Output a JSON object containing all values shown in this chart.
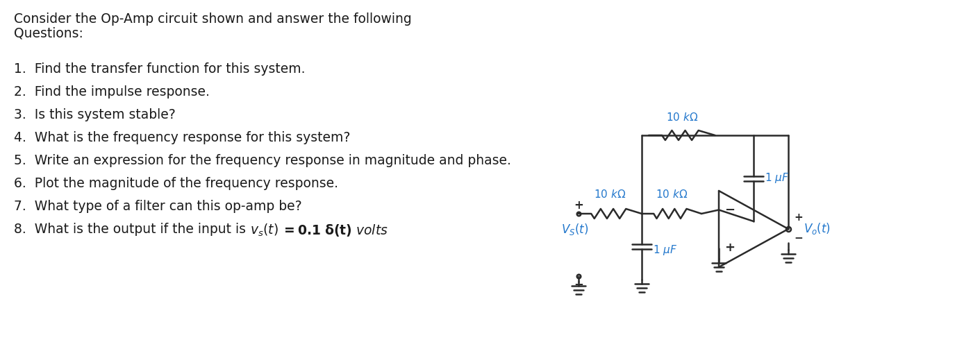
{
  "bg_color": "#ffffff",
  "text_color": "#1a1a1a",
  "circuit_color": "#2a2a2a",
  "label_color": "#2277cc",
  "font_size": 13.5,
  "title_line1": "Consider the Op-Amp circuit shown and answer the following",
  "title_line2": "Questions:",
  "q1": "1.  Find the transfer function for this system.",
  "q2": "2.  Find the impulse response.",
  "q3": "3.  Is this system stable?",
  "q4": "4.  What is the frequency response for this system?",
  "q5": "5.  Write an expression for the frequency response in magnitude and phase.",
  "q6": "6.  Plot the magnitude of the frequency response.",
  "q7": "7.  What type of a filter can this op-amp be?",
  "q8a": "8.  What is the output if the input is ",
  "q8b": "= 0.1 δ(t) volts",
  "lw": 1.8
}
